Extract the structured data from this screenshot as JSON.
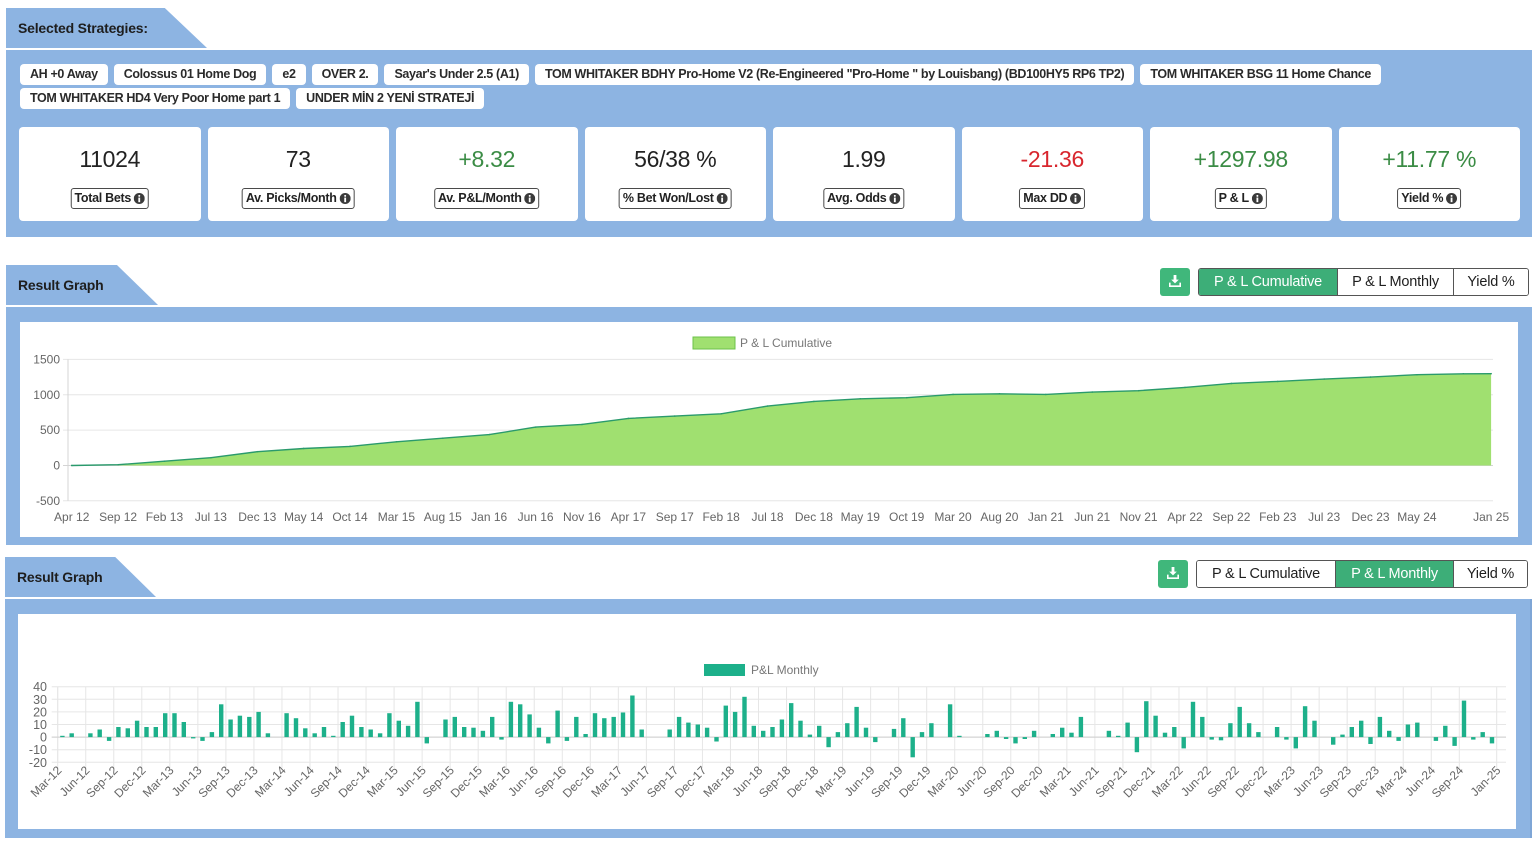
{
  "strategies": {
    "title": "Selected Strategies:",
    "chips": [
      "AH +0 Away",
      "Colossus 01 Home Dog",
      "e2",
      "OVER 2.",
      "Sayar's Under 2.5 (A1)",
      "TOM WHITAKER BDHY Pro-Home V2 (Re-Engineered \"Pro-Home \" by Louisbang) (BD100HY5 RP6 TP2)",
      "TOM WHITAKER BSG 11 Home Chance",
      "TOM WHITAKER HD4 Very Poor Home part 1",
      "UNDER MİN 2 YENİ STRATEJİ"
    ]
  },
  "colors": {
    "panel": "#8db4e2",
    "accent": "#3dae78",
    "positive": "#3b8c45",
    "negative": "#d8262e",
    "neutral": "#222222",
    "cumulative_fill": "#a0e070",
    "cumulative_line": "#2a9a6c",
    "monthly_bar": "#1db08a"
  },
  "stats": [
    {
      "value": "11024",
      "label": "Total Bets",
      "tone": "neutral",
      "icon": "info-icon"
    },
    {
      "value": "73",
      "label": "Av. Picks/Month",
      "tone": "neutral",
      "icon": "info-icon"
    },
    {
      "value": "+8.32",
      "label": "Av. P&L/Month",
      "tone": "positive",
      "icon": "info-icon"
    },
    {
      "value": "56/38 %",
      "label": "% Bet Won/Lost",
      "tone": "neutral",
      "icon": "info-icon"
    },
    {
      "value": "1.99",
      "label": "Avg. Odds",
      "tone": "neutral",
      "icon": "info-icon"
    },
    {
      "value": "-21.36",
      "label": "Max DD",
      "tone": "negative",
      "icon": "info-icon"
    },
    {
      "value": "+1297.98",
      "label": "P & L",
      "tone": "positive",
      "icon": "info-icon"
    },
    {
      "value": "+11.77 %",
      "label": "Yield %",
      "tone": "positive",
      "icon": "info-icon"
    }
  ],
  "graphs": [
    {
      "title": "Result Graph",
      "download_icon": "download-icon",
      "tabs": [
        "P & L Cumulative",
        "P & L Monthly",
        "Yield %"
      ],
      "active_tab": 0
    },
    {
      "title": "Result Graph",
      "download_icon": "download-icon",
      "tabs": [
        "P & L Cumulative",
        "P & L Monthly",
        "Yield %"
      ],
      "active_tab": 1
    }
  ],
  "chart_data": [
    {
      "type": "area",
      "title": "",
      "xlabel": "",
      "ylabel": "",
      "legend": [
        "P & L Cumulative"
      ],
      "legend_position": "top",
      "grid": true,
      "x_unit": "months since Apr 12",
      "xlim": [
        -0.4,
        153.2
      ],
      "ylim": [
        -500,
        1500
      ],
      "y_ticks": [
        1500,
        1000,
        500,
        0,
        -500
      ],
      "x_tick_months": [
        0,
        5,
        10,
        15,
        20,
        25,
        30,
        35,
        40,
        45,
        50,
        55,
        60,
        65,
        70,
        75,
        80,
        85,
        90,
        95,
        100,
        105,
        110,
        115,
        120,
        125,
        130,
        135,
        140,
        145,
        153
      ],
      "x_tick_labels": [
        "Apr 12",
        "Sep 12",
        "Feb 13",
        "Jul 13",
        "Dec 13",
        "May 14",
        "Oct 14",
        "Mar 15",
        "Aug 15",
        "Jan 16",
        "Jun 16",
        "Nov 16",
        "Apr 17",
        "Sep 17",
        "Feb 18",
        "Jul 18",
        "Dec 18",
        "May 19",
        "Oct 19",
        "Mar 20",
        "Aug 20",
        "Jan 21",
        "Jun 21",
        "Nov 21",
        "Apr 22",
        "Sep 22",
        "Feb 23",
        "Jul 23",
        "Dec 23",
        "May 24",
        "Jan 25"
      ],
      "series": [
        {
          "name": "P & L Cumulative",
          "x_months": [
            0,
            5,
            10,
            15,
            20,
            25,
            30,
            35,
            40,
            45,
            50,
            55,
            60,
            65,
            70,
            75,
            80,
            85,
            90,
            95,
            100,
            105,
            110,
            115,
            120,
            125,
            130,
            135,
            140,
            145,
            150,
            153
          ],
          "values": [
            0,
            10,
            60,
            110,
            195,
            240,
            270,
            335,
            385,
            437,
            542,
            580,
            665,
            698,
            731,
            840,
            906,
            943,
            958,
            1005,
            1014,
            1005,
            1038,
            1057,
            1104,
            1160,
            1189,
            1222,
            1250,
            1283,
            1297,
            1297.98
          ]
        }
      ]
    },
    {
      "type": "bar",
      "title": "",
      "xlabel": "",
      "ylabel": "",
      "legend": [
        "P&L Monthly"
      ],
      "legend_position": "top",
      "grid": true,
      "ylim": [
        -20,
        40
      ],
      "y_ticks": [
        40,
        30,
        20,
        10,
        0,
        -10,
        -20
      ],
      "categories": [
        "Mar-12",
        "Apr-12",
        "May-12",
        "Jun-12",
        "Jul-12",
        "Aug-12",
        "Sep-12",
        "Oct-12",
        "Nov-12",
        "Dec-12",
        "Jan-13",
        "Feb-13",
        "Mar-13",
        "Apr-13",
        "May-13",
        "Jun-13",
        "Jul-13",
        "Aug-13",
        "Sep-13",
        "Oct-13",
        "Nov-13",
        "Dec-13",
        "Jan-14",
        "Feb-14",
        "Mar-14",
        "Apr-14",
        "May-14",
        "Jun-14",
        "Jul-14",
        "Aug-14",
        "Sep-14",
        "Oct-14",
        "Nov-14",
        "Dec-14",
        "Jan-15",
        "Feb-15",
        "Mar-15",
        "Apr-15",
        "May-15",
        "Jun-15",
        "Jul-15",
        "Aug-15",
        "Sep-15",
        "Oct-15",
        "Nov-15",
        "Dec-15",
        "Jan-16",
        "Feb-16",
        "Mar-16",
        "Apr-16",
        "May-16",
        "Jun-16",
        "Jul-16",
        "Aug-16",
        "Sep-16",
        "Oct-16",
        "Nov-16",
        "Dec-16",
        "Jan-17",
        "Feb-17",
        "Mar-17",
        "Apr-17",
        "May-17",
        "Jun-17",
        "Jul-17",
        "Aug-17",
        "Sep-17",
        "Oct-17",
        "Nov-17",
        "Dec-17",
        "Jan-18",
        "Feb-18",
        "Mar-18",
        "Apr-18",
        "May-18",
        "Jun-18",
        "Jul-18",
        "Aug-18",
        "Sep-18",
        "Oct-18",
        "Nov-18",
        "Dec-18",
        "Jan-19",
        "Feb-19",
        "Mar-19",
        "Apr-19",
        "May-19",
        "Jun-19",
        "Jul-19",
        "Aug-19",
        "Sep-19",
        "Oct-19",
        "Nov-19",
        "Dec-19",
        "Jan-20",
        "Feb-20",
        "Mar-20",
        "Apr-20",
        "May-20",
        "Jun-20",
        "Jul-20",
        "Aug-20",
        "Sep-20",
        "Oct-20",
        "Nov-20",
        "Dec-20",
        "Jan-21",
        "Feb-21",
        "Mar-21",
        "Apr-21",
        "May-21",
        "Jun-21",
        "Jul-21",
        "Aug-21",
        "Sep-21",
        "Oct-21",
        "Nov-21",
        "Dec-21",
        "Jan-22",
        "Feb-22",
        "Mar-22",
        "Apr-22",
        "May-22",
        "Jun-22",
        "Jul-22",
        "Aug-22",
        "Sep-22",
        "Oct-22",
        "Nov-22",
        "Dec-22",
        "Jan-23",
        "Feb-23",
        "Mar-23",
        "Apr-23",
        "May-23",
        "Jun-23",
        "Jul-23",
        "Aug-23",
        "Sep-23",
        "Oct-23",
        "Nov-23",
        "Dec-23",
        "Jan-24",
        "Feb-24",
        "Mar-24",
        "Apr-24",
        "May-24",
        "Jun-24",
        "Jul-24",
        "Aug-24",
        "Sep-24",
        "Oct-24",
        "Nov-24",
        "Dec-24",
        "Jan-25"
      ],
      "x_tick_labels": [
        "Mar-12",
        "Jun-12",
        "Sep-12",
        "Dec-12",
        "Mar-13",
        "Jun-13",
        "Sep-13",
        "Dec-13",
        "Mar-14",
        "Jun-14",
        "Sep-14",
        "Dec-14",
        "Mar-15",
        "Jun-15",
        "Sep-15",
        "Dec-15",
        "Mar-16",
        "Jun-16",
        "Sep-16",
        "Dec-16",
        "Mar-17",
        "Jun-17",
        "Sep-17",
        "Dec-17",
        "Mar-18",
        "Jun-18",
        "Sep-18",
        "Dec-18",
        "Mar-19",
        "Jun-19",
        "Sep-19",
        "Dec-19",
        "Mar-20",
        "Jun-20",
        "Sep-20",
        "Dec-20",
        "Mar-21",
        "Jun-21",
        "Sep-21",
        "Dec-21",
        "Mar-22",
        "Jun-22",
        "Sep-22",
        "Dec-22",
        "Mar-23",
        "Jun-23",
        "Sep-23",
        "Dec-23",
        "Mar-24",
        "Jun-24",
        "Sep-24",
        "Jan-25"
      ],
      "series": [
        {
          "name": "P&L Monthly",
          "values": [
            1,
            3,
            0,
            3,
            6,
            -3,
            8,
            7,
            13,
            8,
            8,
            19,
            19,
            12,
            -1,
            -3,
            4,
            26,
            14,
            17,
            16,
            20,
            3,
            0,
            19,
            15,
            7,
            3,
            8,
            1,
            12,
            17,
            8,
            6,
            3,
            19,
            13,
            9,
            28,
            -5,
            0,
            14,
            16,
            8,
            7.5,
            5,
            16,
            -2,
            28,
            26,
            18,
            7.5,
            -5,
            21,
            -3,
            16,
            2.5,
            19,
            15,
            16,
            19.5,
            33,
            6,
            0,
            0,
            6,
            16,
            11.5,
            10,
            7.5,
            -3.5,
            25,
            20,
            32,
            9,
            5,
            8,
            14,
            27,
            13,
            2,
            9,
            -8,
            4,
            11,
            24,
            7.5,
            -4,
            0,
            6.5,
            15,
            -16,
            4,
            11,
            0,
            26,
            1,
            0,
            0,
            2.5,
            5,
            -1.5,
            -5,
            -1.5,
            5,
            0,
            2.5,
            7.5,
            3.5,
            16,
            0,
            0,
            5,
            1,
            11.5,
            -12,
            28.5,
            17,
            3.5,
            8,
            -9,
            28,
            16,
            -2,
            -2.5,
            11,
            24,
            11,
            4,
            0,
            8,
            -2,
            -9,
            24.5,
            13,
            0,
            -6,
            2,
            8,
            13,
            -5.5,
            16,
            5,
            -3,
            10,
            11.5,
            0,
            -3,
            9,
            -7,
            29,
            -2,
            4,
            -5,
            0
          ]
        }
      ]
    }
  ]
}
